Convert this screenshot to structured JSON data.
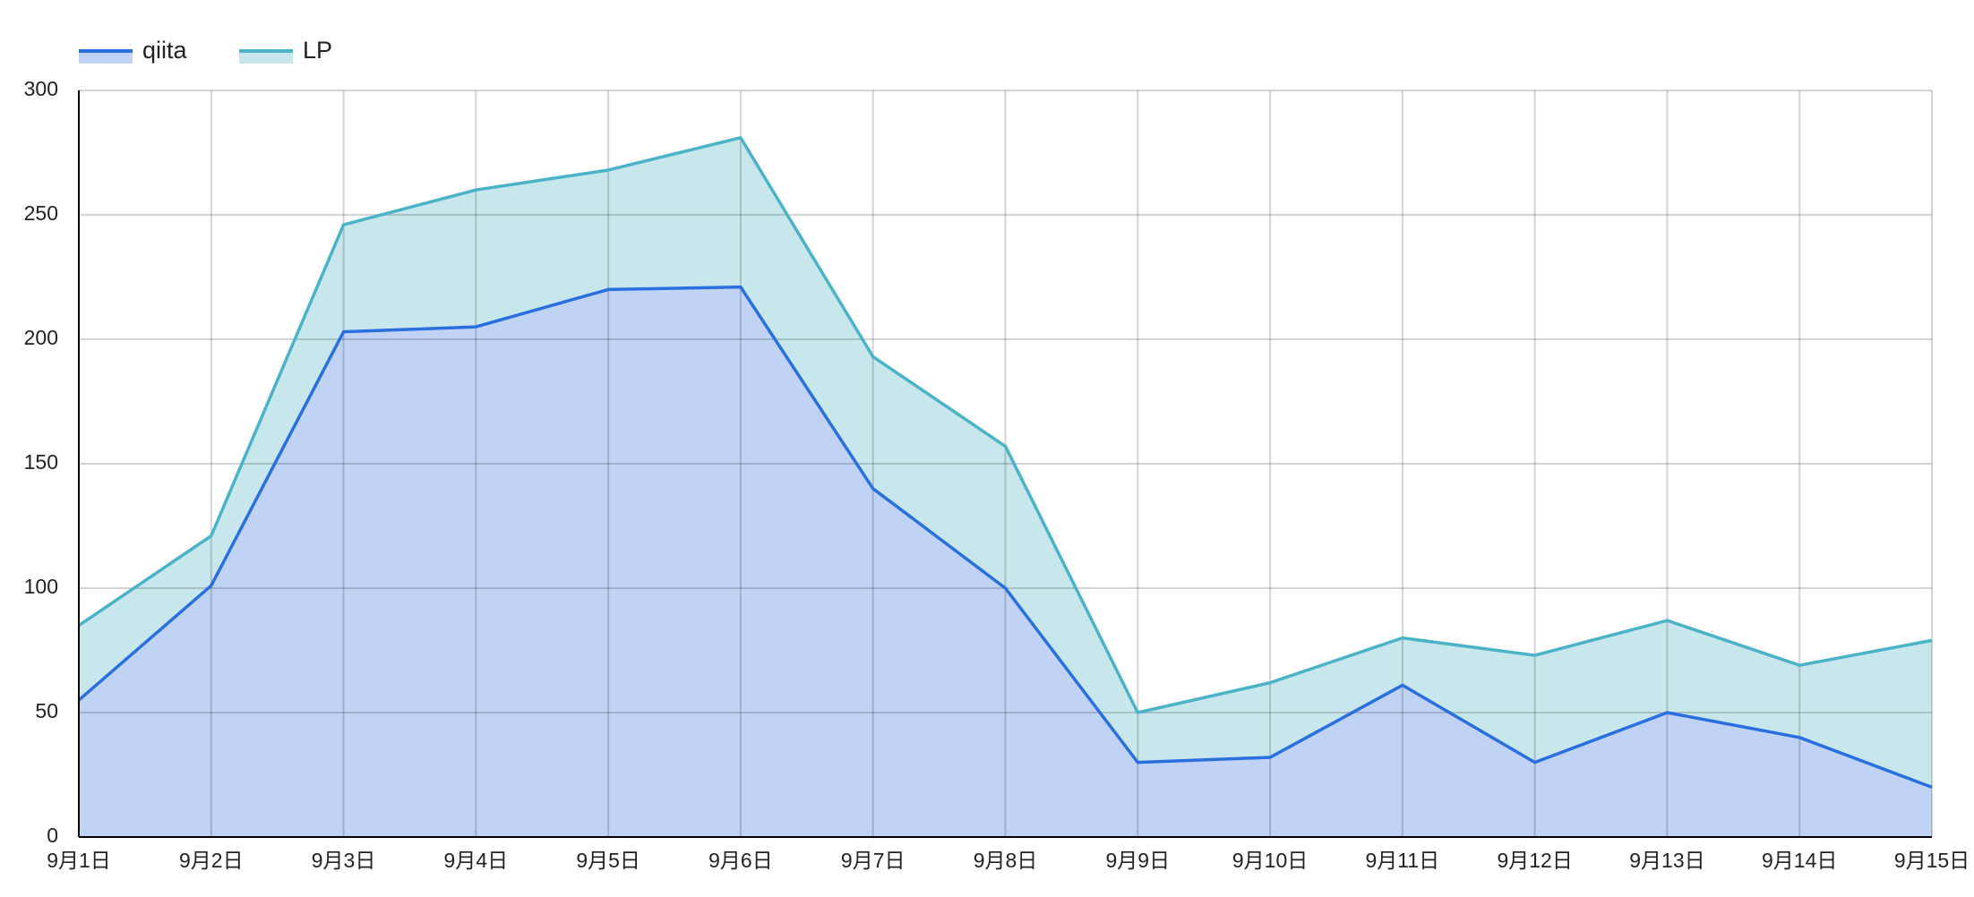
{
  "chart_data": {
    "type": "stacked_area",
    "categories": [
      "9月1日",
      "9月2日",
      "9月3日",
      "9月4日",
      "9月5日",
      "9月6日",
      "9月7日",
      "9月8日",
      "9月9日",
      "9月10日",
      "9月11日",
      "9月12日",
      "9月13日",
      "9月14日",
      "9月15日"
    ],
    "series": [
      {
        "name": "qiita",
        "color": "#2a6fe0",
        "fill": "#c0d3f5",
        "values": [
          55,
          101,
          203,
          205,
          220,
          221,
          140,
          100,
          30,
          32,
          61,
          30,
          50,
          40,
          20
        ]
      },
      {
        "name": "LP",
        "color": "#4ab3c8",
        "fill": "#c8e7ec",
        "values": [
          30,
          20,
          43,
          55,
          48,
          60,
          53,
          57,
          20,
          30,
          19,
          43,
          37,
          29,
          59
        ]
      }
    ],
    "ylim": [
      0,
      300
    ],
    "yticks": [
      0,
      50,
      100,
      150,
      200,
      250,
      300
    ],
    "grid": true,
    "legend": "top-left"
  }
}
